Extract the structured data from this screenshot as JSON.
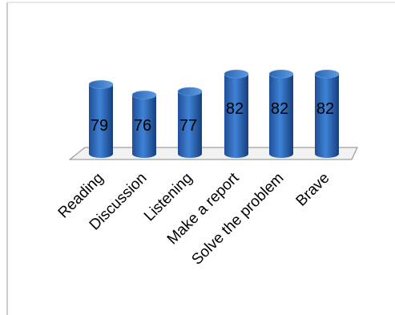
{
  "chart_data": {
    "type": "bar",
    "categories": [
      "Reading",
      "Discussion",
      "Listening",
      "Make a report",
      "Solve the problem",
      "Brave"
    ],
    "values": [
      79,
      76,
      77,
      82,
      82,
      82
    ],
    "data_labels": [
      "79",
      "76",
      "77",
      "82",
      "82",
      "82"
    ],
    "style": "3d-cylinder",
    "bar_color": "#2E6CC0",
    "grid": false,
    "legend": "none"
  }
}
